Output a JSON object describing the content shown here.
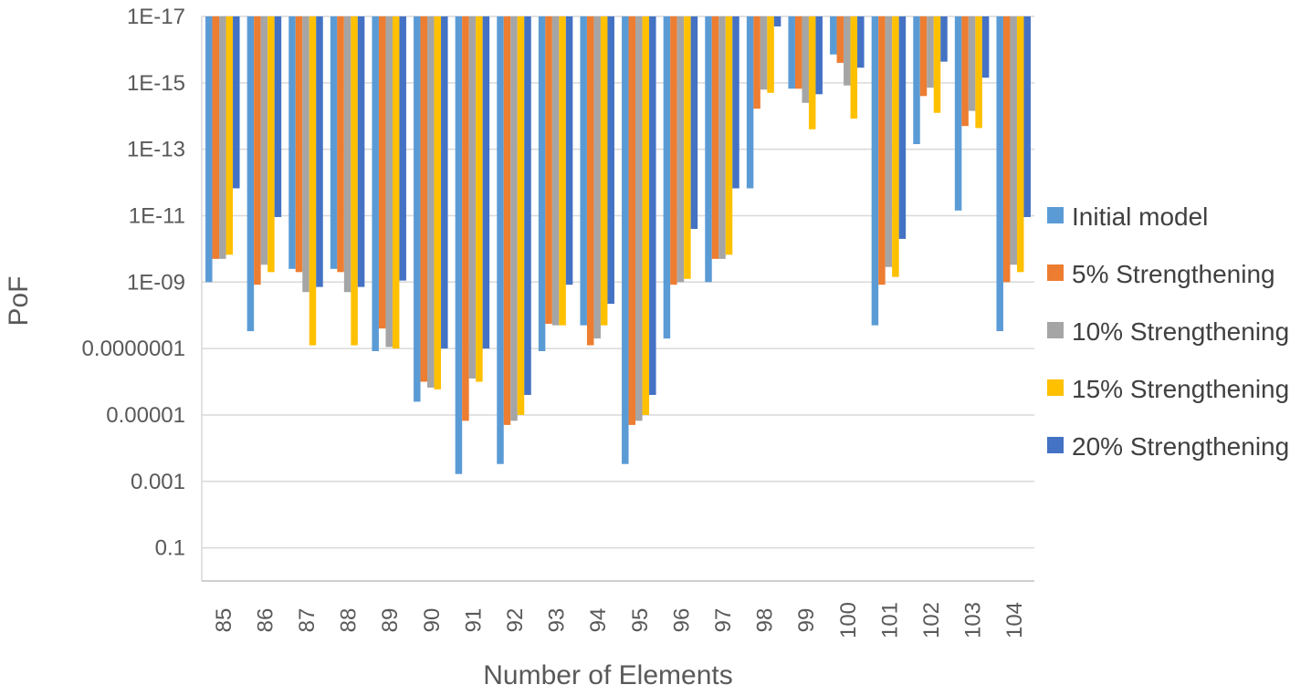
{
  "chart_data": {
    "type": "bar",
    "title": "",
    "xlabel": "Number of Elements",
    "ylabel": "PoF",
    "y_scale": "log",
    "y_reversed": true,
    "ylim": [
      1,
      1e-17
    ],
    "y_ticks": [
      {
        "value": 0.1,
        "label": "0.1"
      },
      {
        "value": 0.001,
        "label": "0.001"
      },
      {
        "value": 1e-05,
        "label": "0.00001"
      },
      {
        "value": 1e-07,
        "label": "0.0000001"
      },
      {
        "value": 1e-09,
        "label": "1E-09"
      },
      {
        "value": 1e-11,
        "label": "1E-11"
      },
      {
        "value": 1e-13,
        "label": "1E-13"
      },
      {
        "value": 1e-15,
        "label": "1E-15"
      },
      {
        "value": 1e-17,
        "label": "1E-17"
      }
    ],
    "grid": true,
    "legend_position": "right",
    "categories": [
      "85",
      "86",
      "87",
      "88",
      "89",
      "90",
      "91",
      "92",
      "93",
      "94",
      "95",
      "96",
      "97",
      "98",
      "99",
      "100",
      "101",
      "102",
      "103",
      "104"
    ],
    "series": [
      {
        "name": "Initial model",
        "color": "#5B9BD5",
        "values": [
          1e-09,
          3e-08,
          4e-10,
          4e-10,
          1.2e-07,
          4e-06,
          0.0006,
          0.0003,
          1.2e-07,
          2e-08,
          0.0003,
          5e-08,
          1e-09,
          1.5e-12,
          1.5e-15,
          1.4e-16,
          2e-08,
          7e-14,
          7e-12,
          3e-08
        ]
      },
      {
        "name": "5% Strengthening",
        "color": "#ED7D31",
        "values": [
          2e-10,
          1.2e-09,
          5e-10,
          5e-10,
          2.5e-08,
          1e-06,
          1.5e-05,
          2e-05,
          1.8e-08,
          8e-08,
          2e-05,
          1.2e-09,
          2e-10,
          6e-15,
          1.5e-15,
          2.5e-16,
          1.2e-09,
          2.5e-15,
          2e-14,
          1e-09
        ]
      },
      {
        "name": "10% Strengthening",
        "color": "#A5A5A5",
        "values": [
          2e-10,
          3e-10,
          2e-09,
          2e-09,
          9e-08,
          1.5e-06,
          8e-07,
          1.5e-05,
          2e-08,
          5e-08,
          1.5e-05,
          1e-09,
          2e-10,
          1.6e-15,
          4e-15,
          1.2e-15,
          3.5e-10,
          1.4e-15,
          7e-15,
          3e-10
        ]
      },
      {
        "name": "15% Strengthening",
        "color": "#FFC000",
        "values": [
          1.5e-10,
          5e-10,
          8e-08,
          8e-08,
          1e-07,
          1.7e-06,
          1e-06,
          1e-05,
          2e-08,
          2e-08,
          1e-05,
          8e-10,
          1.5e-10,
          2e-15,
          2.5e-14,
          1.2e-14,
          7e-10,
          8e-15,
          2.3e-14,
          5e-10
        ]
      },
      {
        "name": "20% Strengthening",
        "color": "#4472C4",
        "values": [
          1.5e-12,
          1.1e-11,
          1.4e-09,
          1.4e-09,
          9e-10,
          1e-07,
          1e-07,
          2.5e-06,
          1.2e-09,
          4.5e-09,
          2.5e-06,
          2.5e-11,
          1.5e-12,
          2e-17,
          2.2e-15,
          3.5e-16,
          5e-11,
          2.3e-16,
          7e-16,
          1.1e-11
        ]
      }
    ]
  }
}
